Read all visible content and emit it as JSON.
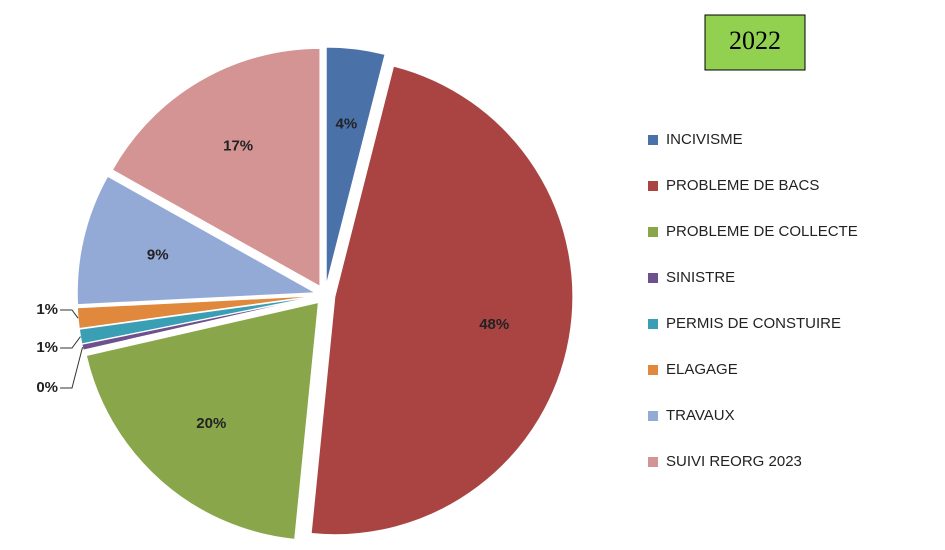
{
  "chart_data": {
    "type": "pie",
    "title": "2022",
    "categories": [
      "INCIVISME",
      "PROBLEME DE BACS",
      "PROBLEME DE COLLECTE",
      "SINISTRE",
      "PERMIS DE CONSTUIRE",
      "ELAGAGE",
      "TRAVAUX",
      "SUIVI REORG 2023"
    ],
    "values": [
      4,
      48,
      20,
      0.4,
      1,
      1.4,
      9,
      17
    ],
    "value_labels": [
      "4%",
      "48%",
      "20%",
      "0%",
      "1%",
      "1%",
      "9%",
      "17%"
    ],
    "colors": [
      "#4a72a8",
      "#a94442",
      "#8aa64b",
      "#6f508f",
      "#3a9fb4",
      "#e0883c",
      "#94aad6",
      "#d49494"
    ],
    "legend": "right"
  }
}
